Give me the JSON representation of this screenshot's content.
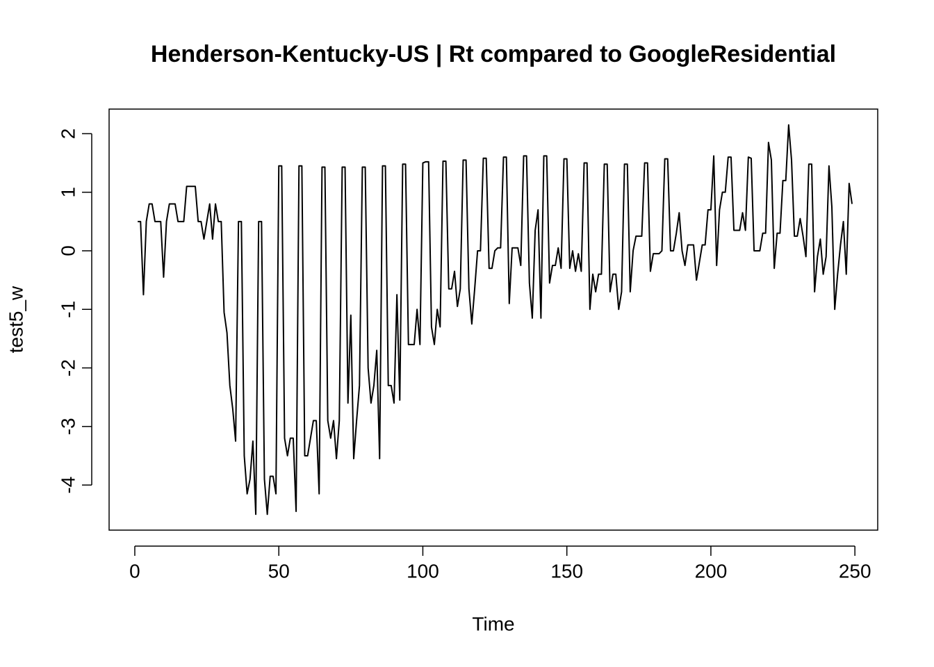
{
  "chart_data": {
    "type": "line",
    "title": "Henderson-Kentucky-US | Rt compared to GoogleResidential",
    "xlabel": "Time",
    "ylabel": "test5_w",
    "xlim": [
      -8.92,
      257.92
    ],
    "ylim": [
      -4.77,
      2.42
    ],
    "xticks": [
      0,
      50,
      100,
      150,
      200,
      250
    ],
    "yticks": [
      -4,
      -3,
      -2,
      -1,
      0,
      1,
      2
    ],
    "color": "#000000",
    "x": [
      1,
      2,
      3,
      4,
      5,
      6,
      7,
      8,
      9,
      10,
      11,
      12,
      13,
      14,
      15,
      16,
      17,
      18,
      19,
      20,
      21,
      22,
      23,
      24,
      25,
      26,
      27,
      28,
      29,
      30,
      31,
      32,
      33,
      34,
      35,
      36,
      37,
      38,
      39,
      40,
      41,
      42,
      43,
      44,
      45,
      46,
      47,
      48,
      49,
      50,
      51,
      52,
      53,
      54,
      55,
      56,
      57,
      58,
      59,
      60,
      61,
      62,
      63,
      64,
      65,
      66,
      67,
      68,
      69,
      70,
      71,
      72,
      73,
      74,
      75,
      76,
      77,
      78,
      79,
      80,
      81,
      82,
      83,
      84,
      85,
      86,
      87,
      88,
      89,
      90,
      91,
      92,
      93,
      94,
      95,
      96,
      97,
      98,
      99,
      100,
      101,
      102,
      103,
      104,
      105,
      106,
      107,
      108,
      109,
      110,
      111,
      112,
      113,
      114,
      115,
      116,
      117,
      118,
      119,
      120,
      121,
      122,
      123,
      124,
      125,
      126,
      127,
      128,
      129,
      130,
      131,
      132,
      133,
      134,
      135,
      136,
      137,
      138,
      139,
      140,
      141,
      142,
      143,
      144,
      145,
      146,
      147,
      148,
      149,
      150,
      151,
      152,
      153,
      154,
      155,
      156,
      157,
      158,
      159,
      160,
      161,
      162,
      163,
      164,
      165,
      166,
      167,
      168,
      169,
      170,
      171,
      172,
      173,
      174,
      175,
      176,
      177,
      178,
      179,
      180,
      181,
      182,
      183,
      184,
      185,
      186,
      187,
      188,
      189,
      190,
      191,
      192,
      193,
      194,
      195,
      196,
      197,
      198,
      199,
      200,
      201,
      202,
      203,
      204,
      205,
      206,
      207,
      208,
      209,
      210,
      211,
      212,
      213,
      214,
      215,
      216,
      217,
      218,
      219,
      220,
      221,
      222,
      223,
      224,
      225,
      226,
      227,
      228,
      229,
      230,
      231,
      232,
      233,
      234,
      235,
      236,
      237,
      238,
      239,
      240,
      241,
      242,
      243,
      244,
      245,
      246,
      247,
      248,
      249
    ],
    "values": [
      0.5,
      0.5,
      -0.75,
      0.5,
      0.8,
      0.8,
      0.5,
      0.5,
      0.5,
      -0.45,
      0.5,
      0.8,
      0.8,
      0.8,
      0.5,
      0.5,
      0.5,
      1.1,
      1.1,
      1.1,
      1.1,
      0.5,
      0.5,
      0.2,
      0.5,
      0.8,
      0.2,
      0.8,
      0.5,
      0.5,
      -1.05,
      -1.4,
      -2.3,
      -2.7,
      -3.25,
      0.5,
      0.5,
      -3.5,
      -4.15,
      -3.9,
      -3.25,
      -4.5,
      0.5,
      0.5,
      -3.9,
      -4.5,
      -3.85,
      -3.85,
      -4.15,
      1.45,
      1.45,
      -3.2,
      -3.5,
      -3.2,
      -3.2,
      -4.45,
      1.45,
      1.45,
      -3.5,
      -3.5,
      -3.2,
      -2.9,
      -2.9,
      -4.15,
      1.43,
      1.43,
      -2.9,
      -3.2,
      -2.9,
      -3.55,
      -2.9,
      1.43,
      1.43,
      -2.6,
      -1.1,
      -3.55,
      -2.9,
      -2.3,
      1.43,
      1.43,
      -2.0,
      -2.6,
      -2.3,
      -1.7,
      -3.55,
      1.45,
      1.45,
      -2.3,
      -2.3,
      -2.6,
      -0.75,
      -2.55,
      1.48,
      1.48,
      -1.6,
      -1.6,
      -1.6,
      -1.0,
      -1.6,
      1.5,
      1.52,
      1.52,
      -1.3,
      -1.6,
      -1.0,
      -1.3,
      1.53,
      1.53,
      -0.65,
      -0.65,
      -0.35,
      -0.95,
      -0.65,
      1.55,
      1.55,
      -0.65,
      -1.25,
      -0.65,
      0,
      0,
      1.58,
      1.58,
      -0.3,
      -0.3,
      0,
      0.05,
      0.05,
      1.6,
      1.6,
      -0.9,
      0.05,
      0.05,
      0.05,
      -0.25,
      1.62,
      1.62,
      -0.55,
      -1.15,
      0.35,
      0.7,
      -1.15,
      1.62,
      1.62,
      -0.55,
      -0.25,
      -0.25,
      0.05,
      -0.3,
      1.57,
      1.57,
      -0.3,
      0,
      -0.35,
      -0.05,
      -0.35,
      1.5,
      1.5,
      -1.0,
      -0.4,
      -0.7,
      -0.4,
      -0.4,
      1.48,
      1.48,
      -0.7,
      -0.4,
      -0.4,
      -1.0,
      -0.7,
      1.48,
      1.48,
      -0.7,
      0,
      0.25,
      0.25,
      0.25,
      1.5,
      1.5,
      -0.35,
      -0.05,
      -0.05,
      -0.05,
      0,
      1.57,
      1.57,
      0,
      0,
      0.3,
      0.65,
      0,
      -0.25,
      0.1,
      0.1,
      0.1,
      -0.5,
      -0.2,
      0.1,
      0.1,
      0.7,
      0.7,
      1.62,
      -0.25,
      0.7,
      1.0,
      1.0,
      1.6,
      1.6,
      0.35,
      0.35,
      0.35,
      0.65,
      0.35,
      1.6,
      1.58,
      0,
      0,
      0,
      0.3,
      0.3,
      1.85,
      1.55,
      -0.3,
      0.3,
      0.3,
      1.2,
      1.2,
      2.15,
      1.55,
      0.25,
      0.25,
      0.55,
      0.25,
      -0.1,
      1.48,
      1.48,
      -0.7,
      -0.1,
      0.2,
      -0.4,
      -0.1,
      1.45,
      0.75,
      -1.0,
      -0.4,
      0.1,
      0.5,
      -0.4,
      1.15,
      0.8
    ]
  }
}
